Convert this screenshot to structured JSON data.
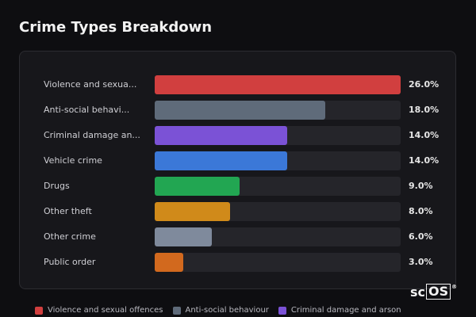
{
  "page": {
    "title": "Crime Types Breakdown",
    "logo": {
      "text_plain": "sc",
      "text_boxed": "OS",
      "reg_mark": "®"
    }
  },
  "colors": {
    "background": "#0e0e11",
    "panel": "#17171b",
    "track": "#25252a"
  },
  "chart_data": {
    "type": "bar",
    "orientation": "horizontal",
    "title": "Crime Types Breakdown",
    "xlim": [
      0,
      26
    ],
    "grid": false,
    "legend_position": "bottom",
    "categories": [
      "Violence and sexual offences",
      "Anti-social behaviour",
      "Criminal damage and arson",
      "Vehicle crime",
      "Drugs",
      "Other theft",
      "Other crime",
      "Public order"
    ],
    "display_labels": [
      "Violence and sexua...",
      "Anti-social behavi...",
      "Criminal damage an...",
      "Vehicle crime",
      "Drugs",
      "Other theft",
      "Other crime",
      "Public order"
    ],
    "values": [
      26.0,
      18.0,
      14.0,
      14.0,
      9.0,
      8.0,
      6.0,
      3.0
    ],
    "value_labels": [
      "26.0%",
      "18.0%",
      "14.0%",
      "14.0%",
      "9.0%",
      "8.0%",
      "6.0%",
      "3.0%"
    ],
    "colors": [
      "#d13f3f",
      "#5f6b7a",
      "#7b52d6",
      "#3b78d8",
      "#22a652",
      "#d08a1a",
      "#7f8a9c",
      "#d2691e"
    ],
    "legend": [
      {
        "label": "Violence and sexual offences",
        "color": "#d13f3f"
      },
      {
        "label": "Anti-social behaviour",
        "color": "#5f6b7a"
      },
      {
        "label": "Criminal damage and arson",
        "color": "#7b52d6"
      }
    ]
  }
}
